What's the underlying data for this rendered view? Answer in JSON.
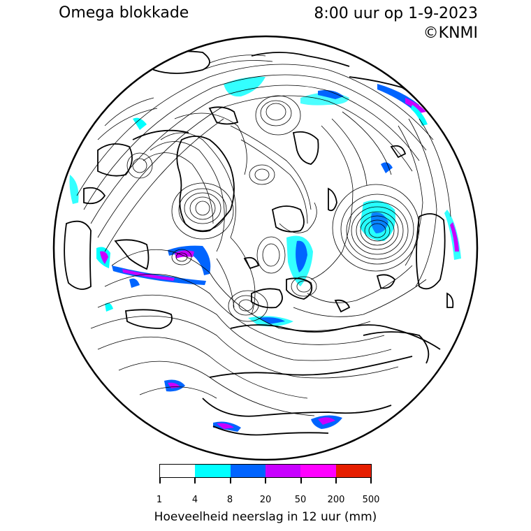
{
  "header": {
    "title": "Omega blokkade",
    "datetime": "8:00 uur op 1-9-2023",
    "credit": "©KNMI"
  },
  "legend": {
    "title": "Hoeveelheid neerslag in 12 uur (mm)",
    "ticks": [
      "1",
      "4",
      "8",
      "20",
      "50",
      "200",
      "500"
    ],
    "colors": [
      "#ffffff",
      "#00ffff",
      "#0064ff",
      "#c800ff",
      "#ff00ff",
      "#e61e00"
    ]
  },
  "map": {
    "projection": "orthographic (north pole)",
    "precip_colors": {
      "light": "#00ffff",
      "moderate": "#0064ff",
      "heavy": "#c800ff",
      "very_heavy": "#ff00ff"
    }
  }
}
